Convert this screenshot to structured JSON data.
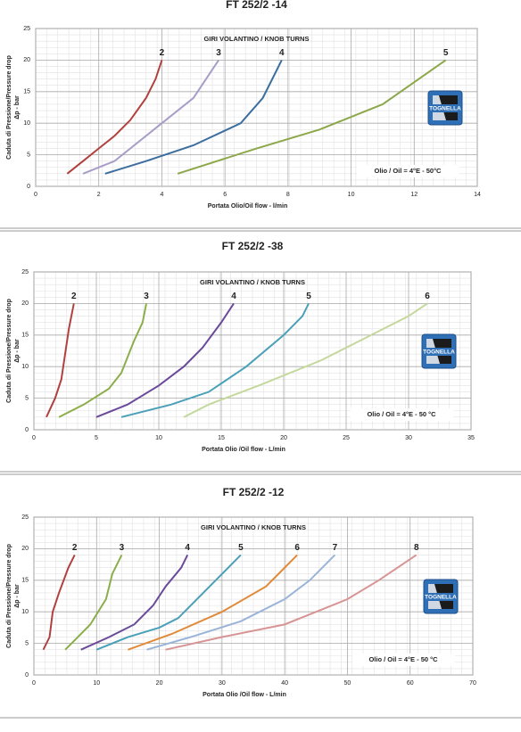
{
  "chart_data": [
    {
      "type": "line",
      "title": "FT 252/2 -14",
      "subtitle": "GIRI VOLANTINO / KNOB TURNS",
      "note": "Olio / Oil = 4°E - 50°C",
      "logo": "TOGNELLA",
      "xlabel": "Portata Olio/Oil flow  -  l/min",
      "ylabel": [
        "Caduta di Pressione/Pressure drop",
        "Δp - bar"
      ],
      "xlim": [
        0,
        14
      ],
      "xticks": [
        0,
        2,
        4,
        6,
        8,
        10,
        12,
        14
      ],
      "ylim": [
        0,
        25
      ],
      "yticks": [
        0,
        5,
        10,
        15,
        20,
        25
      ],
      "grid": true,
      "series": [
        {
          "name": "2",
          "color": "#b0413e",
          "x": [
            1,
            1.5,
            2,
            2.5,
            3,
            3.5,
            3.8,
            4
          ],
          "values": [
            2,
            4,
            6,
            8,
            10.5,
            14,
            17,
            20
          ]
        },
        {
          "name": "3",
          "color": "#a89cc8",
          "x": [
            1.5,
            2.5,
            3,
            4,
            5,
            5.8
          ],
          "values": [
            2,
            4,
            6,
            10,
            14,
            20
          ]
        },
        {
          "name": "4",
          "color": "#3b6e9e",
          "x": [
            2.2,
            3.5,
            5,
            6.5,
            7.2,
            7.8
          ],
          "values": [
            2,
            4,
            6.5,
            10,
            14,
            20
          ]
        },
        {
          "name": "5",
          "color": "#8ca84a",
          "x": [
            4.5,
            7,
            9,
            11,
            13
          ],
          "values": [
            2,
            6,
            9,
            13,
            20
          ]
        }
      ]
    },
    {
      "type": "line",
      "title": "FT 252/2 -38",
      "subtitle": "GIRI VOLANTINO / KNOB TURNS",
      "note": "Olio / Oil = 4°E - 50 °C",
      "logo": "TOGNELLA",
      "xlabel": "Portata Olio /Oil flow - L/min",
      "ylabel": [
        "Caduta di Pressione/Pressure drop",
        "Δp - bar"
      ],
      "xlim": [
        0,
        35
      ],
      "xticks": [
        0,
        5,
        10,
        15,
        20,
        25,
        30,
        35
      ],
      "ylim": [
        0,
        25
      ],
      "yticks": [
        0,
        5,
        10,
        15,
        20,
        25
      ],
      "grid": true,
      "series": [
        {
          "name": "2",
          "color": "#b0413e",
          "x": [
            1,
            1.7,
            2.2,
            2.5,
            2.8,
            3.2
          ],
          "values": [
            2,
            5,
            8,
            12,
            16,
            20
          ]
        },
        {
          "name": "3",
          "color": "#8cae4a",
          "x": [
            2,
            4,
            6,
            7,
            8,
            8.7,
            9
          ],
          "values": [
            2,
            4,
            6.5,
            9,
            14,
            17,
            20
          ]
        },
        {
          "name": "4",
          "color": "#6a4a9a",
          "x": [
            5,
            7.5,
            10,
            12,
            13.5,
            15,
            16
          ],
          "values": [
            2,
            4,
            7,
            10,
            13,
            17,
            20
          ]
        },
        {
          "name": "5",
          "color": "#4aa0b8",
          "x": [
            7,
            11,
            14,
            17,
            20,
            21.5,
            22
          ],
          "values": [
            2,
            4,
            6,
            10,
            15,
            18,
            20
          ]
        },
        {
          "name": "6",
          "color": "#c4d89c",
          "x": [
            12,
            14,
            18,
            23,
            30,
            31.5
          ],
          "values": [
            2,
            4,
            7,
            11,
            18,
            20
          ]
        }
      ]
    },
    {
      "type": "line",
      "title": "FT 252/2 -12",
      "subtitle": "GIRI VOLANTINO / KNOB TURNS",
      "note": "Olio / Oil = 4°E - 50 °C",
      "logo": "TOGNELLA",
      "xlabel": "Portata Olio /Oil flow - L/min",
      "ylabel": [
        "Caduta di Pressione/Pressure drop",
        "Δp - bar"
      ],
      "xlim": [
        0,
        70
      ],
      "xticks": [
        0,
        10,
        20,
        30,
        40,
        50,
        60,
        70
      ],
      "ylim": [
        0,
        25
      ],
      "yticks": [
        0,
        5,
        10,
        15,
        20,
        25
      ],
      "grid": true,
      "series": [
        {
          "name": "2",
          "color": "#b0413e",
          "x": [
            1.5,
            2.5,
            3,
            4,
            5.5,
            6.5
          ],
          "values": [
            4,
            6,
            10,
            13,
            17,
            19
          ]
        },
        {
          "name": "3",
          "color": "#8cae4a",
          "x": [
            5,
            7,
            9,
            11.5,
            12.5,
            14
          ],
          "values": [
            4,
            6,
            8,
            12,
            16,
            19
          ]
        },
        {
          "name": "4",
          "color": "#6a4a9a",
          "x": [
            7.5,
            12,
            16,
            19,
            21,
            23.5,
            24.5
          ],
          "values": [
            4,
            6,
            8,
            11,
            14,
            17,
            19
          ]
        },
        {
          "name": "5",
          "color": "#4aa0b8",
          "x": [
            10,
            15,
            20,
            23,
            26,
            29,
            33
          ],
          "values": [
            4,
            6,
            7.5,
            9,
            12,
            15,
            19
          ]
        },
        {
          "name": "6",
          "color": "#e08a3a",
          "x": [
            15,
            22,
            30,
            37,
            40,
            42
          ],
          "values": [
            4,
            6.5,
            10,
            14,
            17,
            19
          ]
        },
        {
          "name": "7",
          "color": "#9ab4d8",
          "x": [
            18,
            25,
            33,
            40,
            44,
            48
          ],
          "values": [
            4,
            6,
            8.5,
            12,
            15,
            19
          ]
        },
        {
          "name": "8",
          "color": "#d89494",
          "x": [
            21,
            30,
            40,
            50,
            55,
            61
          ],
          "values": [
            4,
            6,
            8,
            12,
            15,
            19
          ]
        }
      ]
    }
  ]
}
